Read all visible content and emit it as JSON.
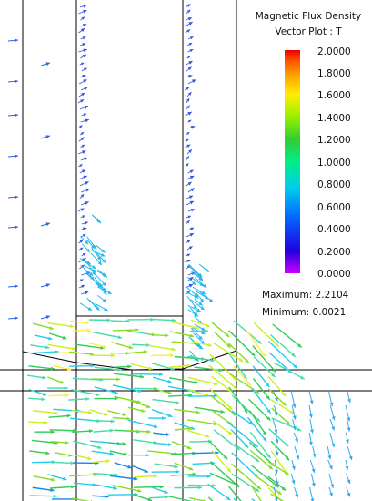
{
  "legend": {
    "title_line1": "Magnetic Flux Density",
    "title_line2": "Vector Plot : T",
    "ticks": [
      "2.0000",
      "1.8000",
      "1.6000",
      "1.4000",
      "1.2000",
      "1.0000",
      "0.8000",
      "0.6000",
      "0.4000",
      "0.2000",
      "0.0000"
    ],
    "colors": [
      "#cc00ff",
      "#2200dd",
      "#0066ff",
      "#00ccee",
      "#00ee88",
      "#33cc33",
      "#99ee00",
      "#ffee00",
      "#ffaa00",
      "#ff5500",
      "#ee0000"
    ]
  },
  "stats": {
    "maximum": "Maximum: 2.2104",
    "minimum": "Minimum: 0.0021"
  }
}
